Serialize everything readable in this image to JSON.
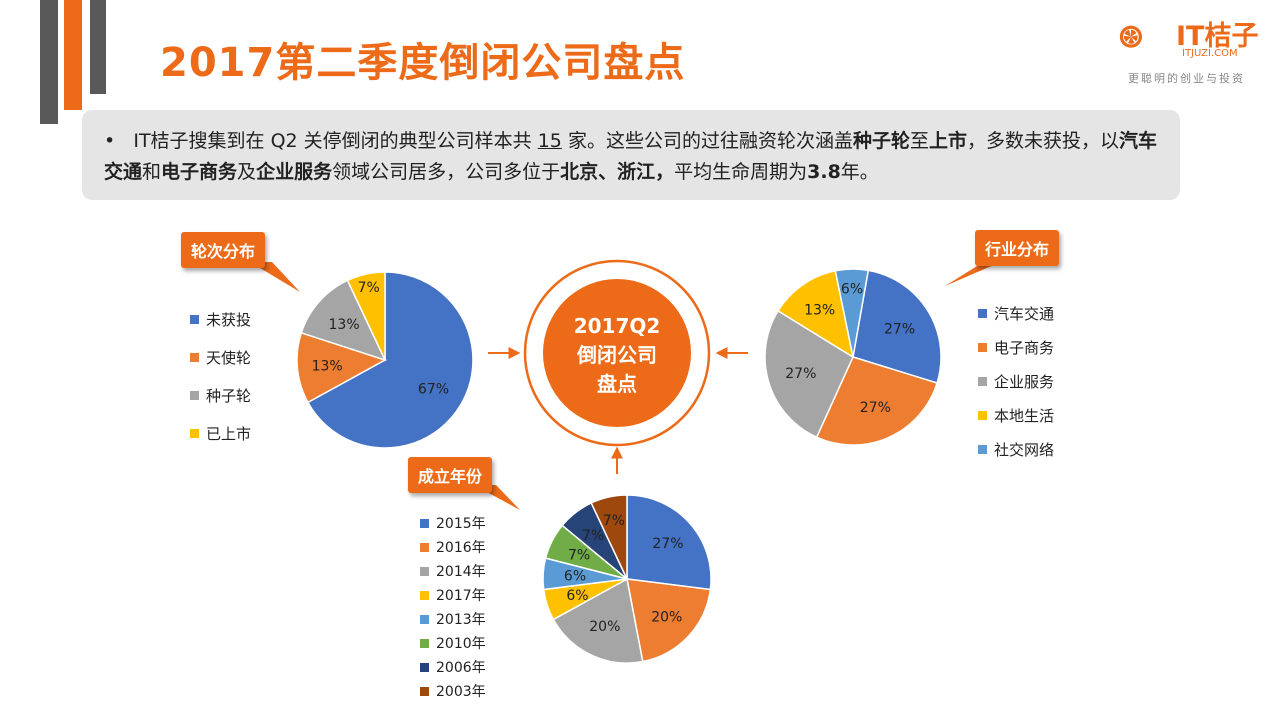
{
  "title": "2017第二季度倒闭公司盘点",
  "logo": {
    "name": "IT桔子",
    "url": "ITJUZI.COM",
    "slogan": "更聪明的创业与投资"
  },
  "summary": {
    "bullet": "•",
    "p1": "IT桔子搜集到在 Q2 关停倒闭的典型公司样本共 ",
    "count": "15",
    "p2": " 家。这些公司的过往融资轮次涵盖",
    "b1": "种子轮",
    "p3": "至",
    "b2": "上市",
    "p4": "，多数未获投，以",
    "b3": "汽车交通",
    "p5": "和",
    "b4": "电子商务",
    "p6": "及",
    "b5": "企业服务",
    "p7": "领域公司居多，公司多位于",
    "b6": "北京、浙江，",
    "p8": "平均生命周期为",
    "b7": "3.8",
    "p9": "年。"
  },
  "center": {
    "line1": "2017Q2",
    "line2": "倒闭公司",
    "line3": "盘点"
  },
  "colors": {
    "accent": "#ec6a18",
    "summary_bg": "#e5e5e5"
  },
  "chart_data": [
    {
      "type": "pie",
      "title": "轮次分布",
      "categories": [
        "未获投",
        "天使轮",
        "种子轮",
        "已上市"
      ],
      "values": [
        67,
        13,
        13,
        7
      ],
      "labels": [
        "67%",
        "13%",
        "13%",
        "7%"
      ],
      "colors": [
        "#4472c4",
        "#ed7d31",
        "#a5a5a5",
        "#ffc000"
      ],
      "legend": "left"
    },
    {
      "type": "pie",
      "title": "行业分布",
      "categories": [
        "汽车交通",
        "电子商务",
        "企业服务",
        "本地生活",
        "社交网络"
      ],
      "values": [
        27,
        27,
        27,
        13,
        6
      ],
      "labels": [
        "27%",
        "27%",
        "27%",
        "13%",
        "6%"
      ],
      "colors": [
        "#4472c4",
        "#ed7d31",
        "#a5a5a5",
        "#ffc000",
        "#5b9bd5"
      ],
      "legend": "right"
    },
    {
      "type": "pie",
      "title": "成立年份",
      "categories": [
        "2015年",
        "2016年",
        "2014年",
        "2017年",
        "2013年",
        "2010年",
        "2006年",
        "2003年"
      ],
      "values": [
        27,
        20,
        20,
        6,
        6,
        7,
        7,
        7
      ],
      "labels": [
        "27%",
        "20%",
        "20%",
        "6%",
        "6%",
        "7%",
        "7%",
        "7%"
      ],
      "colors": [
        "#4472c4",
        "#ed7d31",
        "#a5a5a5",
        "#ffc000",
        "#5b9bd5",
        "#70ad47",
        "#264478",
        "#9e480e"
      ],
      "legend": "left"
    }
  ]
}
